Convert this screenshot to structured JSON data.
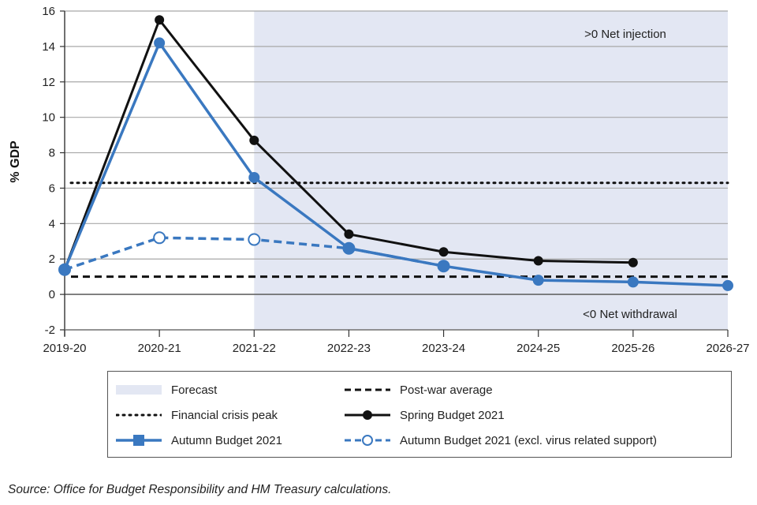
{
  "chart_data": {
    "type": "line",
    "title": "",
    "xlabel": "",
    "ylabel": "% GDP",
    "ylim": [
      -2,
      16
    ],
    "yticks": [
      -2,
      0,
      2,
      4,
      6,
      8,
      10,
      12,
      14,
      16
    ],
    "grid": true,
    "categories": [
      "2019-20",
      "2020-21",
      "2021-22",
      "2022-23",
      "2023-24",
      "2024-25",
      "2025-26",
      "2026-27"
    ],
    "forecast_region": {
      "from": "2021-22",
      "to": "2026-27",
      "label": "Forecast",
      "color": "#e3e7f3"
    },
    "annotations": [
      {
        "text": ">0 Net injection",
        "position": "top-right"
      },
      {
        "text": "<0 Net withdrawal",
        "position": "bottom-right"
      }
    ],
    "reference_lines": [
      {
        "name": "Financial crisis peak",
        "value": 6.3,
        "style": "dotted",
        "color": "#111111"
      },
      {
        "name": "Post-war average",
        "value": 1.0,
        "style": "dashed",
        "color": "#111111"
      }
    ],
    "series": [
      {
        "name": "Spring Budget 2021",
        "color": "#111111",
        "style": "solid",
        "marker": "filled-circle",
        "values": [
          1.4,
          15.5,
          8.7,
          3.4,
          2.4,
          1.9,
          1.8,
          null
        ]
      },
      {
        "name": "Autumn Budget 2021",
        "color": "#3a78c0",
        "style": "solid",
        "marker": "filled-circle",
        "values": [
          1.4,
          14.2,
          6.6,
          2.6,
          1.6,
          0.8,
          0.7,
          0.5
        ]
      },
      {
        "name": "Autumn Budget 2021 (excl. virus related support)",
        "color": "#3a78c0",
        "style": "dashed",
        "marker": "open-circle",
        "values": [
          1.4,
          3.2,
          3.1,
          2.6,
          1.6,
          null,
          null,
          null
        ]
      }
    ],
    "legend": {
      "placement": "bottom",
      "entries": [
        {
          "label": "Forecast",
          "kind": "area"
        },
        {
          "label": "Post-war average",
          "kind": "dashed"
        },
        {
          "label": "Financial crisis peak",
          "kind": "dotted"
        },
        {
          "label": "Spring Budget 2021",
          "kind": "black-line-marker"
        },
        {
          "label": "Autumn Budget 2021",
          "kind": "blue-line-square"
        },
        {
          "label": "Autumn Budget 2021 (excl. virus related support)",
          "kind": "blue-dashed-open"
        }
      ]
    }
  },
  "source": "Source: Office for Budget Responsibility and HM Treasury calculations."
}
